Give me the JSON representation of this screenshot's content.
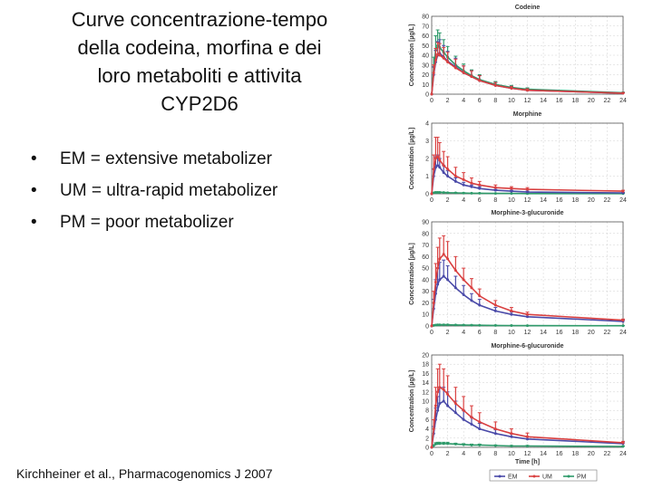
{
  "slide": {
    "title_lines": [
      "Curve concentrazione-tempo",
      "della codeina, morfina e dei",
      "loro metaboliti e attivita",
      "CYP2D6"
    ],
    "bullets": [
      "EM = extensive metabolizer",
      "UM = ultra-rapid metabolizer",
      "PM = poor metabolizer"
    ],
    "citation": "Kirchheiner et al., Pharmacogenomics J 2007"
  },
  "colors": {
    "EM": "#4a4aa8",
    "UM": "#d94040",
    "PM": "#2e9a6a"
  },
  "chart_data": [
    {
      "type": "line",
      "title": "Codeine",
      "ylabel": "Concentration [µg/L]",
      "xlabel": "",
      "ylim": [
        0,
        80
      ],
      "yticks": [
        0,
        10,
        20,
        30,
        40,
        50,
        60,
        70,
        80
      ],
      "xlim": [
        0,
        24
      ],
      "xticks": [
        0,
        2,
        4,
        6,
        8,
        10,
        12,
        14,
        16,
        18,
        20,
        22,
        24
      ],
      "x": [
        0,
        0.25,
        0.5,
        0.75,
        1,
        1.5,
        2,
        3,
        4,
        5,
        6,
        8,
        10,
        12,
        24
      ],
      "series": [
        {
          "name": "EM",
          "values": [
            0,
            20,
            33,
            40,
            42,
            38,
            34,
            28,
            22,
            18,
            14,
            9,
            6,
            4,
            1
          ],
          "err": [
            0,
            8,
            12,
            14,
            14,
            12,
            10,
            9,
            7,
            6,
            5,
            3,
            2,
            1.5,
            0.5
          ]
        },
        {
          "name": "UM",
          "values": [
            0,
            22,
            35,
            41,
            40,
            37,
            33,
            27,
            22,
            18,
            14,
            9,
            6,
            4,
            1
          ],
          "err": [
            0,
            8,
            12,
            12,
            12,
            11,
            10,
            9,
            7,
            6,
            5,
            3,
            2,
            1.5,
            0.5
          ]
        },
        {
          "name": "PM",
          "values": [
            0,
            28,
            45,
            50,
            48,
            43,
            38,
            30,
            24,
            19,
            15,
            10,
            7,
            5,
            1.5
          ],
          "err": [
            0,
            10,
            15,
            16,
            15,
            13,
            11,
            9,
            7,
            6,
            5,
            3,
            2,
            1.5,
            0.5
          ]
        }
      ]
    },
    {
      "type": "line",
      "title": "Morphine",
      "ylabel": "Concentration [µg/L]",
      "xlabel": "",
      "ylim": [
        0,
        4
      ],
      "yticks": [
        0,
        1,
        2,
        3,
        4
      ],
      "xlim": [
        0,
        24
      ],
      "xticks": [
        0,
        2,
        4,
        6,
        8,
        10,
        12,
        14,
        16,
        18,
        20,
        22,
        24
      ],
      "x": [
        0,
        0.25,
        0.5,
        0.75,
        1,
        1.5,
        2,
        3,
        4,
        5,
        6,
        8,
        10,
        12,
        24
      ],
      "series": [
        {
          "name": "EM",
          "values": [
            0,
            1.0,
            1.5,
            1.6,
            1.5,
            1.2,
            1.0,
            0.7,
            0.5,
            0.4,
            0.3,
            0.2,
            0.15,
            0.1,
            0.05
          ],
          "err": [
            0,
            0.4,
            0.6,
            0.6,
            0.5,
            0.4,
            0.3,
            0.2,
            0.15,
            0.1,
            0.1,
            0.05,
            0.05,
            0.05,
            0.02
          ]
        },
        {
          "name": "UM",
          "values": [
            0,
            1.4,
            2.0,
            2.1,
            1.9,
            1.6,
            1.4,
            1.0,
            0.8,
            0.6,
            0.5,
            0.35,
            0.3,
            0.25,
            0.15
          ],
          "err": [
            0,
            0.8,
            1.2,
            1.1,
            1.0,
            0.8,
            0.7,
            0.5,
            0.4,
            0.3,
            0.2,
            0.15,
            0.1,
            0.1,
            0.05
          ]
        },
        {
          "name": "PM",
          "values": [
            0,
            0.05,
            0.08,
            0.08,
            0.08,
            0.07,
            0.06,
            0.05,
            0.04,
            0.03,
            0.03,
            0.02,
            0.02,
            0.01,
            0.01
          ],
          "err": [
            0,
            0.02,
            0.03,
            0.03,
            0.03,
            0.02,
            0.02,
            0.02,
            0.02,
            0.01,
            0.01,
            0.01,
            0.01,
            0.01,
            0.01
          ]
        }
      ]
    },
    {
      "type": "line",
      "title": "Morphine-3-glucuronide",
      "ylabel": "Concentration [µg/L]",
      "xlabel": "",
      "ylim": [
        0,
        90
      ],
      "yticks": [
        0,
        10,
        20,
        30,
        40,
        50,
        60,
        70,
        80,
        90
      ],
      "xlim": [
        0,
        24
      ],
      "xticks": [
        0,
        2,
        4,
        6,
        8,
        10,
        12,
        14,
        16,
        18,
        20,
        22,
        24
      ],
      "x": [
        0,
        0.25,
        0.5,
        0.75,
        1,
        1.5,
        2,
        3,
        4,
        5,
        6,
        8,
        10,
        12,
        24
      ],
      "series": [
        {
          "name": "EM",
          "values": [
            0,
            15,
            28,
            36,
            40,
            43,
            40,
            33,
            27,
            22,
            18,
            13,
            10,
            8,
            4
          ],
          "err": [
            0,
            8,
            12,
            14,
            15,
            14,
            12,
            10,
            8,
            6,
            5,
            3,
            2,
            2,
            1
          ]
        },
        {
          "name": "UM",
          "values": [
            0,
            20,
            38,
            50,
            58,
            62,
            58,
            48,
            40,
            33,
            26,
            18,
            13,
            10,
            5
          ],
          "err": [
            0,
            10,
            16,
            18,
            18,
            16,
            15,
            12,
            10,
            8,
            6,
            4,
            3,
            2,
            1
          ]
        },
        {
          "name": "PM",
          "values": [
            0,
            0.5,
            0.8,
            1.0,
            1.0,
            1.0,
            1.0,
            0.9,
            0.8,
            0.7,
            0.6,
            0.5,
            0.4,
            0.3,
            0.2
          ],
          "err": [
            0,
            0.3,
            0.4,
            0.4,
            0.4,
            0.4,
            0.4,
            0.3,
            0.3,
            0.2,
            0.2,
            0.2,
            0.1,
            0.1,
            0.1
          ]
        }
      ]
    },
    {
      "type": "line",
      "title": "Morphine-6-glucuronide",
      "ylabel": "Concentration [µg/L]",
      "xlabel": "Time [h]",
      "ylim": [
        0,
        20
      ],
      "yticks": [
        0,
        2,
        4,
        6,
        8,
        10,
        12,
        14,
        16,
        18,
        20
      ],
      "xlim": [
        0,
        24
      ],
      "xticks": [
        0,
        2,
        4,
        6,
        8,
        10,
        12,
        14,
        16,
        18,
        20,
        22,
        24
      ],
      "x": [
        0,
        0.25,
        0.5,
        0.75,
        1,
        1.5,
        2,
        3,
        4,
        5,
        6,
        8,
        10,
        12,
        24
      ],
      "series": [
        {
          "name": "EM",
          "values": [
            0,
            3,
            6,
            8,
            9.5,
            10,
            9,
            7.5,
            6,
            5,
            4,
            3,
            2.3,
            1.8,
            0.8
          ],
          "err": [
            0,
            1.5,
            2.5,
            3,
            3.5,
            3,
            3,
            2.5,
            2,
            1.5,
            1.2,
            0.8,
            0.6,
            0.5,
            0.2
          ]
        },
        {
          "name": "UM",
          "values": [
            0,
            4,
            9,
            12,
            13,
            12.5,
            11.5,
            9.5,
            8,
            6.5,
            5.5,
            4,
            3,
            2.3,
            1
          ],
          "err": [
            0,
            2,
            4,
            5,
            5,
            4.5,
            4,
            3.5,
            3,
            2.5,
            2,
            1.5,
            1,
            0.8,
            0.3
          ]
        },
        {
          "name": "PM",
          "values": [
            0,
            0.4,
            0.7,
            0.8,
            0.8,
            0.8,
            0.8,
            0.7,
            0.6,
            0.5,
            0.5,
            0.4,
            0.3,
            0.3,
            0.2
          ],
          "err": [
            0,
            0.2,
            0.3,
            0.3,
            0.3,
            0.3,
            0.3,
            0.2,
            0.2,
            0.2,
            0.2,
            0.1,
            0.1,
            0.1,
            0.1
          ]
        }
      ]
    }
  ],
  "legend": [
    "EM",
    "UM",
    "PM"
  ]
}
